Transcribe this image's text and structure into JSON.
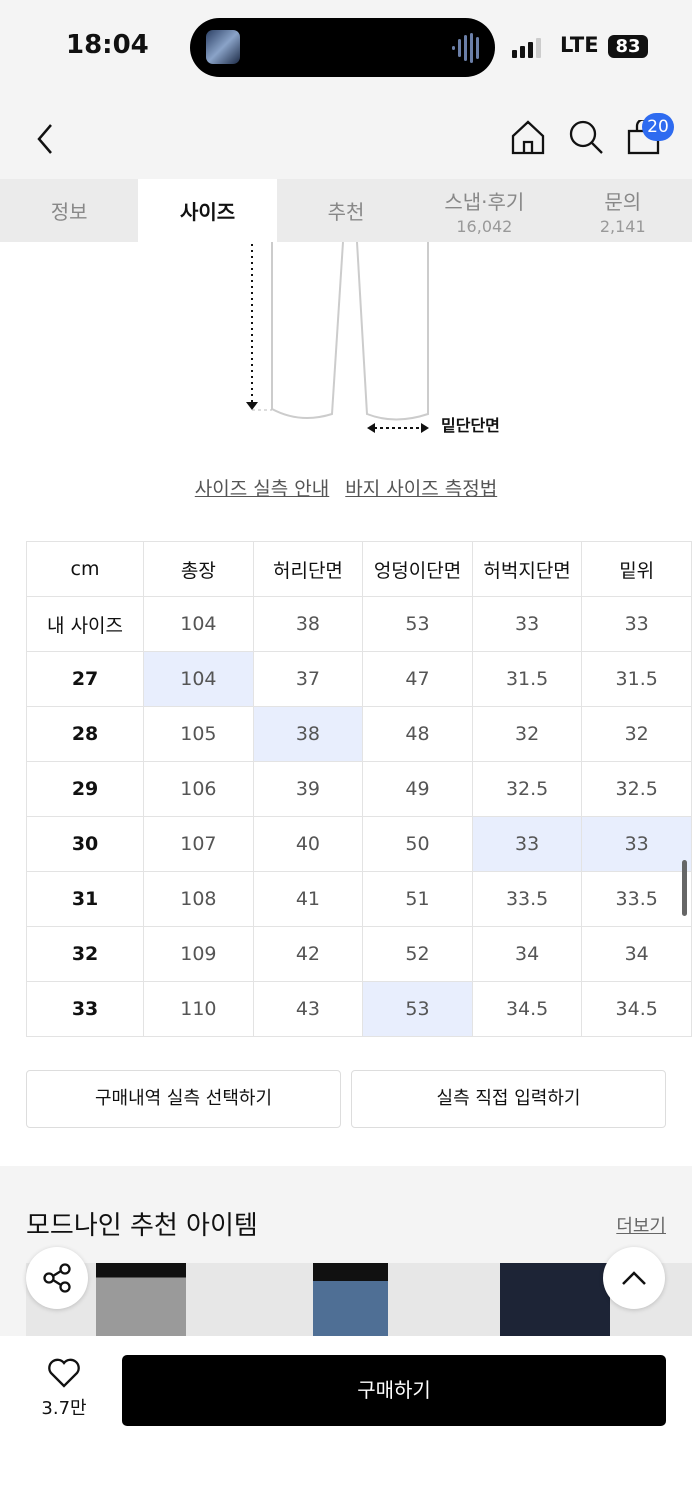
{
  "status_bar": {
    "time": "18:04",
    "network": "LTE",
    "battery": "83"
  },
  "nav": {
    "cart_count": "20"
  },
  "tabs": [
    {
      "label": "정보"
    },
    {
      "label": "사이즈",
      "active": true
    },
    {
      "label": "추천"
    },
    {
      "label": "스냅·후기",
      "count": "16,042"
    },
    {
      "label": "문의",
      "count": "2,141"
    }
  ],
  "diagram": {
    "label": "밑단단면"
  },
  "links": {
    "size_guide": "사이즈 실측 안내",
    "measure_guide": "바지 사이즈 측정법"
  },
  "size_table": {
    "headers": [
      "cm",
      "총장",
      "허리단면",
      "엉덩이단면",
      "허벅지단면",
      "밑위"
    ],
    "rows": [
      {
        "label": "내 사이즈",
        "values": [
          "104",
          "38",
          "53",
          "33",
          "33"
        ],
        "highlight": []
      },
      {
        "label": "27",
        "values": [
          "104",
          "37",
          "47",
          "31.5",
          "31.5"
        ],
        "highlight": [
          0
        ]
      },
      {
        "label": "28",
        "values": [
          "105",
          "38",
          "48",
          "32",
          "32"
        ],
        "highlight": [
          1
        ]
      },
      {
        "label": "29",
        "values": [
          "106",
          "39",
          "49",
          "32.5",
          "32.5"
        ],
        "highlight": []
      },
      {
        "label": "30",
        "values": [
          "107",
          "40",
          "50",
          "33",
          "33"
        ],
        "highlight": [
          3,
          4
        ]
      },
      {
        "label": "31",
        "values": [
          "108",
          "41",
          "51",
          "33.5",
          "33.5"
        ],
        "highlight": []
      },
      {
        "label": "32",
        "values": [
          "109",
          "42",
          "52",
          "34",
          "34"
        ],
        "highlight": []
      },
      {
        "label": "33",
        "values": [
          "110",
          "43",
          "53",
          "34.5",
          "34.5"
        ],
        "highlight": [
          2
        ]
      }
    ],
    "highlight_color": "#e8eefd"
  },
  "actions": {
    "select_purchase": "구매내역 실측 선택하기",
    "manual_input": "실측 직접 입력하기"
  },
  "recommend": {
    "title": "모드나인 추천 아이템",
    "more": "더보기"
  },
  "footer": {
    "like_count": "3.7만",
    "buy": "구매하기"
  },
  "colors": {
    "badge": "#2e6bf0",
    "buy_button": "#000000"
  }
}
